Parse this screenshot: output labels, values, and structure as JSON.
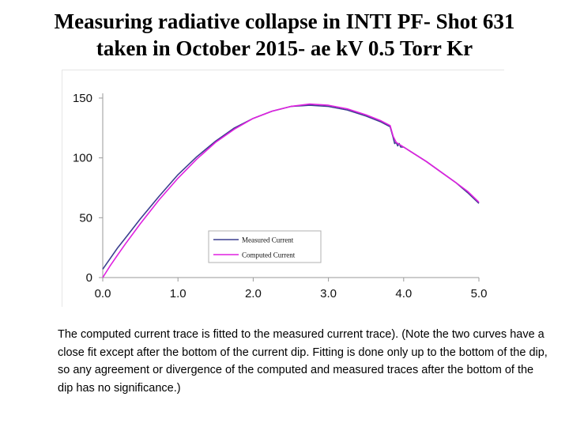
{
  "page": {
    "title_line1": "Measuring radiative collapse in INTI PF- Shot 631",
    "title_line2": "taken in October 2015- ae kV 0.5 Torr Kr",
    "caption": "The computed current trace is fitted to the measured current trace). (Note the two curves have a close fit except after the bottom of the current dip. Fitting is done only up to the bottom of the dip, so any agreement or divergence of the computed and measured traces after the bottom of the dip has no significance.)"
  },
  "chart_data": {
    "type": "line",
    "title": "",
    "xlabel": "",
    "ylabel": "",
    "xlim": [
      0,
      5
    ],
    "ylim": [
      0,
      150
    ],
    "x_ticks": [
      "0.0",
      "1.0",
      "2.0",
      "3.0",
      "4.0",
      "5.0"
    ],
    "y_ticks": [
      "0",
      "50",
      "100",
      "150"
    ],
    "legend_position": "lower-center",
    "series": [
      {
        "name": "Measured Current",
        "color": "#3b3f8f",
        "points": [
          [
            0.0,
            7
          ],
          [
            0.1,
            16
          ],
          [
            0.2,
            25
          ],
          [
            0.3,
            33
          ],
          [
            0.5,
            49
          ],
          [
            0.75,
            68
          ],
          [
            1.0,
            86
          ],
          [
            1.25,
            101
          ],
          [
            1.5,
            114
          ],
          [
            1.75,
            125
          ],
          [
            2.0,
            133
          ],
          [
            2.25,
            139
          ],
          [
            2.5,
            143
          ],
          [
            2.75,
            144
          ],
          [
            3.0,
            143
          ],
          [
            3.25,
            140
          ],
          [
            3.5,
            135
          ],
          [
            3.7,
            130
          ],
          [
            3.82,
            126
          ],
          [
            3.86,
            117
          ],
          [
            3.88,
            112
          ],
          [
            3.9,
            113
          ],
          [
            3.92,
            110
          ],
          [
            3.94,
            112
          ],
          [
            3.96,
            109
          ],
          [
            4.0,
            109
          ],
          [
            4.1,
            105
          ],
          [
            4.3,
            97
          ],
          [
            4.5,
            88
          ],
          [
            4.7,
            79
          ],
          [
            4.85,
            71
          ],
          [
            5.0,
            62
          ]
        ]
      },
      {
        "name": "Computed Current",
        "color": "#e020e0",
        "points": [
          [
            0.0,
            0
          ],
          [
            0.1,
            10
          ],
          [
            0.2,
            19
          ],
          [
            0.3,
            28
          ],
          [
            0.5,
            45
          ],
          [
            0.75,
            65
          ],
          [
            1.0,
            83
          ],
          [
            1.25,
            99
          ],
          [
            1.5,
            113
          ],
          [
            1.75,
            124
          ],
          [
            2.0,
            133
          ],
          [
            2.25,
            139
          ],
          [
            2.5,
            143
          ],
          [
            2.75,
            145
          ],
          [
            3.0,
            144
          ],
          [
            3.25,
            141
          ],
          [
            3.5,
            136
          ],
          [
            3.7,
            131
          ],
          [
            3.82,
            127
          ],
          [
            3.86,
            118
          ],
          [
            3.9,
            113
          ],
          [
            3.95,
            111
          ],
          [
            4.0,
            109
          ],
          [
            4.1,
            105
          ],
          [
            4.3,
            97
          ],
          [
            4.5,
            88
          ],
          [
            4.7,
            79
          ],
          [
            4.85,
            72
          ],
          [
            5.0,
            63
          ]
        ]
      }
    ]
  }
}
